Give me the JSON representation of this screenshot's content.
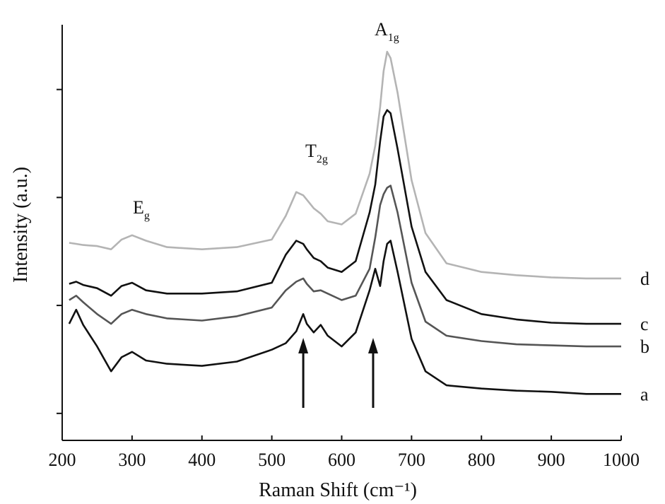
{
  "chart_data": {
    "type": "line",
    "x_label": "Raman Shift (cm⁻¹)",
    "y_label": "Intensity (a.u.)",
    "annotations": [
      {
        "text": "E",
        "sub": "g"
      },
      {
        "text": "T",
        "sub": "2g"
      },
      {
        "text": "A",
        "sub": "1g"
      }
    ],
    "arrows": [
      545,
      645
    ],
    "x": [
      210,
      220,
      230,
      250,
      270,
      285,
      300,
      320,
      350,
      400,
      450,
      500,
      520,
      535,
      545,
      550,
      560,
      570,
      580,
      600,
      620,
      640,
      648,
      655,
      660,
      665,
      670,
      680,
      700,
      720,
      750,
      800,
      850,
      900,
      950,
      1000
    ],
    "series": [
      {
        "name": "d",
        "color": "#b4b4b4",
        "values": [
          1.58,
          1.57,
          1.56,
          1.55,
          1.52,
          1.61,
          1.65,
          1.6,
          1.54,
          1.52,
          1.54,
          1.61,
          1.83,
          2.05,
          2.02,
          1.98,
          1.9,
          1.85,
          1.78,
          1.75,
          1.85,
          2.22,
          2.48,
          2.84,
          3.17,
          3.35,
          3.29,
          2.97,
          2.16,
          1.67,
          1.39,
          1.31,
          1.28,
          1.26,
          1.25,
          1.25
        ]
      },
      {
        "name": "c",
        "color": "#111111",
        "values": [
          1.2,
          1.22,
          1.19,
          1.16,
          1.09,
          1.18,
          1.21,
          1.14,
          1.11,
          1.11,
          1.13,
          1.21,
          1.47,
          1.6,
          1.57,
          1.52,
          1.44,
          1.41,
          1.35,
          1.31,
          1.41,
          1.86,
          2.12,
          2.52,
          2.75,
          2.81,
          2.78,
          2.45,
          1.73,
          1.31,
          1.05,
          0.92,
          0.87,
          0.84,
          0.83,
          0.83
        ]
      },
      {
        "name": "b",
        "color": "#555555",
        "values": [
          1.05,
          1.09,
          1.03,
          0.92,
          0.83,
          0.92,
          0.96,
          0.92,
          0.88,
          0.86,
          0.9,
          0.98,
          1.14,
          1.22,
          1.25,
          1.2,
          1.13,
          1.14,
          1.11,
          1.05,
          1.09,
          1.34,
          1.63,
          1.93,
          2.03,
          2.09,
          2.11,
          1.86,
          1.21,
          0.85,
          0.72,
          0.67,
          0.64,
          0.63,
          0.62,
          0.62
        ]
      },
      {
        "name": "a",
        "color": "#111111",
        "values": [
          0.83,
          0.96,
          0.82,
          0.62,
          0.39,
          0.52,
          0.57,
          0.49,
          0.46,
          0.44,
          0.48,
          0.59,
          0.65,
          0.76,
          0.92,
          0.83,
          0.75,
          0.82,
          0.72,
          0.62,
          0.75,
          1.14,
          1.34,
          1.18,
          1.41,
          1.57,
          1.6,
          1.31,
          0.69,
          0.39,
          0.26,
          0.23,
          0.21,
          0.2,
          0.18,
          0.18
        ]
      }
    ],
    "xlim": [
      200,
      1000
    ],
    "xticks": [
      200,
      300,
      400,
      500,
      600,
      700,
      800,
      900,
      1000
    ],
    "ylim": [
      -0.25,
      3.6
    ],
    "yticks": [
      0,
      1,
      2,
      3
    ]
  }
}
